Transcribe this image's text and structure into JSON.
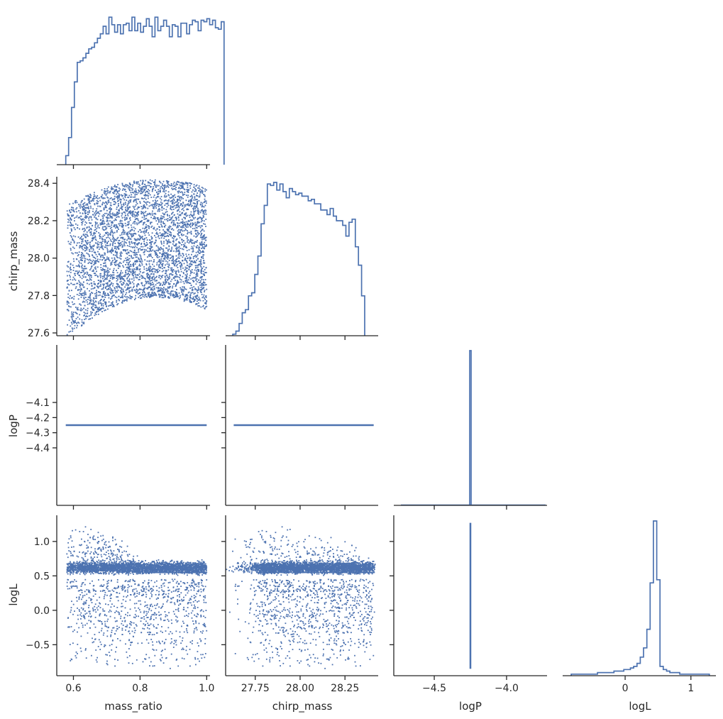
{
  "colors": {
    "series": "#4c72b0",
    "axis": "#262626",
    "background": "#ffffff"
  },
  "axis_titles": {
    "mass_ratio": "mass_ratio",
    "chirp_mass": "chirp_mass",
    "logP": "logP",
    "logL": "logL"
  },
  "chart_data": {
    "type": "corner",
    "variables": [
      "mass_ratio",
      "chirp_mass",
      "logP",
      "logL"
    ],
    "ranges": {
      "mass_ratio": [
        0.55,
        1.01
      ],
      "chirp_mass": [
        27.585,
        28.435
      ],
      "logP": [
        -4.78,
        -3.72
      ],
      "logL": [
        -0.95,
        1.38
      ]
    },
    "ticks": {
      "mass_ratio": [
        0.6,
        0.8,
        1.0
      ],
      "chirp_mass_y": [
        27.6,
        27.8,
        28.0,
        28.2,
        28.4
      ],
      "chirp_mass_x": [
        27.75,
        28.0,
        28.25
      ],
      "logP_y": [
        -4.4,
        -4.3,
        -4.2,
        -4.1
      ],
      "logP_x": [
        -4.5,
        -4.0
      ],
      "logL_y": [
        -0.5,
        0.0,
        0.5,
        1.0
      ],
      "logL_x": [
        0,
        1
      ]
    },
    "tick_labels": {
      "mass_ratio": [
        "0.6",
        "0.8",
        "1.0"
      ],
      "chirp_mass_y": [
        "27.6",
        "27.8",
        "28.0",
        "28.2",
        "28.4"
      ],
      "chirp_mass_x": [
        "27.75",
        "28.00",
        "28.25"
      ],
      "logP_y": [
        "−4.4",
        "−4.3",
        "−4.2",
        "−4.1"
      ],
      "logP_x": [
        "−4.5",
        "−4.0"
      ],
      "logL_y": [
        "−0.5",
        "0.0",
        "0.5",
        "1.0"
      ],
      "logL_x": [
        "0",
        "1"
      ]
    },
    "logP_value": -4.25,
    "histograms": {
      "mass_ratio": {
        "start": 0.577,
        "bin_width": 0.00864,
        "counts": [
          0.06,
          0.18,
          0.38,
          0.55,
          0.68,
          0.69,
          0.71,
          0.74,
          0.77,
          0.78,
          0.81,
          0.84,
          0.87,
          0.92,
          0.87,
          0.98,
          0.93,
          0.88,
          0.93,
          0.87,
          0.93,
          0.94,
          0.89,
          0.98,
          0.89,
          0.94,
          0.88,
          0.92,
          0.97,
          0.92,
          0.85,
          0.98,
          0.89,
          0.92,
          0.96,
          0.92,
          0.85,
          0.93,
          0.92,
          0.85,
          0.94,
          0.94,
          0.87,
          0.93,
          0.96,
          0.95,
          0.89,
          0.96,
          0.95,
          0.97,
          0.93,
          0.96,
          0.91,
          0.9,
          0.95
        ]
      },
      "chirp_mass": {
        "start": 27.625,
        "bin_width": 0.0175,
        "counts": [
          0.01,
          0.03,
          0.08,
          0.15,
          0.17,
          0.26,
          0.28,
          0.4,
          0.52,
          0.73,
          0.85,
          0.99,
          0.98,
          1.0,
          0.95,
          0.99,
          0.94,
          0.9,
          0.96,
          0.94,
          0.92,
          0.93,
          0.91,
          0.91,
          0.88,
          0.89,
          0.86,
          0.86,
          0.82,
          0.82,
          0.79,
          0.83,
          0.78,
          0.75,
          0.75,
          0.72,
          0.65,
          0.74,
          0.76,
          0.58,
          0.46,
          0.26
        ]
      },
      "logP": {
        "bins": [
          -4.255,
          -4.245
        ],
        "counts": [
          1.0
        ]
      },
      "logL": {
        "start": -0.82,
        "bin_width": 0.05,
        "counts": [
          0.01,
          0.01,
          0.01,
          0.01,
          0.01,
          0.01,
          0.01,
          0.01,
          0.02,
          0.02,
          0.02,
          0.02,
          0.02,
          0.03,
          0.03,
          0.03,
          0.04,
          0.04,
          0.05,
          0.06,
          0.08,
          0.12,
          0.18,
          0.3,
          0.6,
          1.0,
          0.62,
          0.06,
          0.04,
          0.03,
          0.02,
          0.02,
          0.02,
          0.01,
          0.01,
          0.01,
          0.01,
          0.01,
          0.01,
          0.01,
          0.01,
          0.01
        ]
      }
    },
    "scatter": {
      "mass_ratio_vs_chirp_mass": "filled region, upper edge ~28.42 at q~0.85, lower edge 27.63 at q~0.6 rising to ~27.79 at q~0.85",
      "mass_ratio_vs_logL": "band at 0.5-0.8, peak ~1.25 near q~0.6, sparse tail down to -0.85",
      "chirp_mass_vs_logL": "arch peaking ~1.25 at ~27.87, band 0.5-0.8, sparse lower cloud"
    },
    "grid": false
  }
}
